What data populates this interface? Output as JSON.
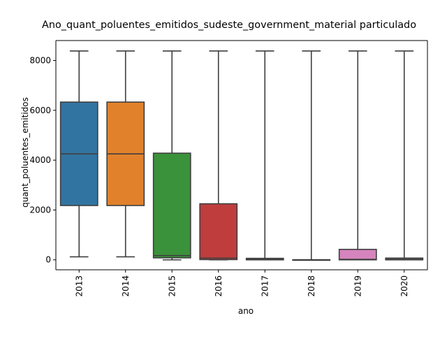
{
  "chart_data": {
    "type": "box",
    "title": "Ano_quant_poluentes_emitidos_sudeste_government_material particulado",
    "xlabel": "ano",
    "ylabel": "quant_poluentes_emitidos",
    "ylim": [
      -400,
      8800
    ],
    "yticks": [
      0,
      2000,
      4000,
      6000,
      8000
    ],
    "grid": false,
    "legend": "none",
    "categories": [
      "2013",
      "2014",
      "2015",
      "2016",
      "2017",
      "2018",
      "2019",
      "2020"
    ],
    "boxes": [
      {
        "category": "2013",
        "whisker_low": 120,
        "q1": 2180,
        "median": 4250,
        "q3": 6330,
        "whisker_high": 8380,
        "color": "#3274a1"
      },
      {
        "category": "2014",
        "whisker_low": 120,
        "q1": 2180,
        "median": 4250,
        "q3": 6330,
        "whisker_high": 8380,
        "color": "#e1812c"
      },
      {
        "category": "2015",
        "whisker_low": 0,
        "q1": 80,
        "median": 170,
        "q3": 4280,
        "whisker_high": 8380,
        "color": "#3a923a"
      },
      {
        "category": "2016",
        "whisker_low": 0,
        "q1": 10,
        "median": 70,
        "q3": 2250,
        "whisker_high": 8380,
        "color": "#c03d3e"
      },
      {
        "category": "2017",
        "whisker_low": 0,
        "q1": 0,
        "median": 20,
        "q3": 60,
        "whisker_high": 8380,
        "color": "#9372b2"
      },
      {
        "category": "2018",
        "whisker_low": 0,
        "q1": 0,
        "median": 0,
        "q3": 5,
        "whisker_high": 8380,
        "color": "#845b53"
      },
      {
        "category": "2019",
        "whisker_low": 0,
        "q1": 0,
        "median": 20,
        "q3": 420,
        "whisker_high": 8380,
        "color": "#d684bd"
      },
      {
        "category": "2020",
        "whisker_low": 0,
        "q1": 0,
        "median": 20,
        "q3": 70,
        "whisker_high": 8380,
        "color": "#7f7f7f"
      }
    ]
  }
}
